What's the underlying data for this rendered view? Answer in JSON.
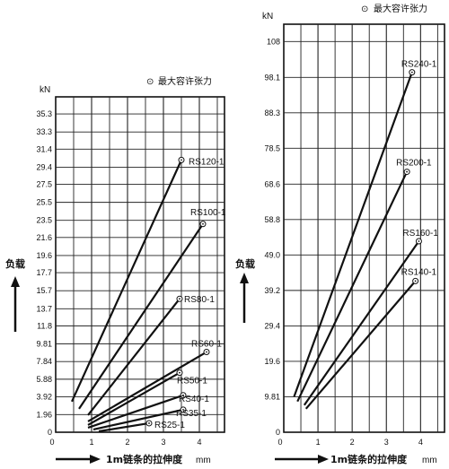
{
  "chart_data": [
    {
      "type": "line",
      "y_unit_label": "kN",
      "ylabel": "负载",
      "xlabel": "1m链条的拉伸度",
      "x_unit_label": "mm",
      "legend_marker_text": "⊙",
      "legend_text": "最大容许张力",
      "xticks": [
        0,
        1,
        2,
        3,
        4
      ],
      "xlim": [
        0,
        4.7
      ],
      "ylim": [
        0,
        37.2
      ],
      "yticks": [
        0,
        1.96,
        3.92,
        5.88,
        7.84,
        9.81,
        11.8,
        13.7,
        15.7,
        17.7,
        19.6,
        21.6,
        23.5,
        25.5,
        27.5,
        29.4,
        31.4,
        33.3,
        35.3
      ],
      "ytick_labels": [
        "0",
        "1.96",
        "3.92",
        "5.88",
        "7.84",
        "9.81",
        "11.8",
        "13.7",
        "15.7",
        "17.7",
        "19.6",
        "21.6",
        "23.5",
        "25.5",
        "27.5",
        "29.4",
        "31.4",
        "33.3",
        "35.3"
      ],
      "grid": true,
      "series": [
        {
          "name": "RS120-1",
          "x": [
            0.45,
            3.5
          ],
          "y": [
            3.4,
            30.2
          ]
        },
        {
          "name": "RS100-1",
          "x": [
            0.65,
            4.1
          ],
          "y": [
            2.6,
            23.1
          ]
        },
        {
          "name": "RS80-1",
          "x": [
            0.9,
            3.45
          ],
          "y": [
            1.9,
            14.8
          ]
        },
        {
          "name": "RS60-1",
          "x": [
            0.9,
            4.2
          ],
          "y": [
            1.2,
            8.9
          ]
        },
        {
          "name": "RS50-1",
          "x": [
            0.9,
            3.45
          ],
          "y": [
            0.8,
            6.6
          ]
        },
        {
          "name": "RS40-1",
          "x": [
            0.9,
            3.55
          ],
          "y": [
            0.5,
            4.1
          ]
        },
        {
          "name": "RS35-1",
          "x": [
            1.05,
            3.55
          ],
          "y": [
            0.3,
            2.5
          ]
        },
        {
          "name": "RS25-1",
          "x": [
            1.2,
            2.6
          ],
          "y": [
            0.1,
            1.0
          ]
        }
      ]
    },
    {
      "type": "line",
      "y_unit_label": "kN",
      "ylabel": "负载",
      "xlabel": "1m链条的拉伸度",
      "x_unit_label": "mm",
      "legend_marker_text": "⊙",
      "legend_text": "最大容许张力",
      "xticks": [
        0,
        1,
        2,
        3,
        4
      ],
      "xlim": [
        0,
        4.7
      ],
      "ylim": [
        0,
        112.8
      ],
      "yticks": [
        0,
        9.81,
        19.6,
        29.4,
        39.2,
        49.0,
        58.8,
        68.6,
        78.5,
        88.3,
        98.1,
        108
      ],
      "ytick_labels": [
        "0",
        "9.81",
        "19.6",
        "29.4",
        "39.2",
        "49.0",
        "58.8",
        "68.6",
        "78.5",
        "88.3",
        "98.1",
        "108"
      ],
      "grid": true,
      "series": [
        {
          "name": "RS240-1",
          "x": [
            0.3,
            3.75
          ],
          "y": [
            9.8,
            99.5
          ]
        },
        {
          "name": "RS200-1",
          "x": [
            0.4,
            3.6
          ],
          "y": [
            8.5,
            72.0
          ]
        },
        {
          "name": "RS160-1",
          "x": [
            0.6,
            3.95
          ],
          "y": [
            7.5,
            52.8
          ]
        },
        {
          "name": "RS140-1",
          "x": [
            0.65,
            3.85
          ],
          "y": [
            6.5,
            41.8
          ]
        }
      ]
    }
  ]
}
